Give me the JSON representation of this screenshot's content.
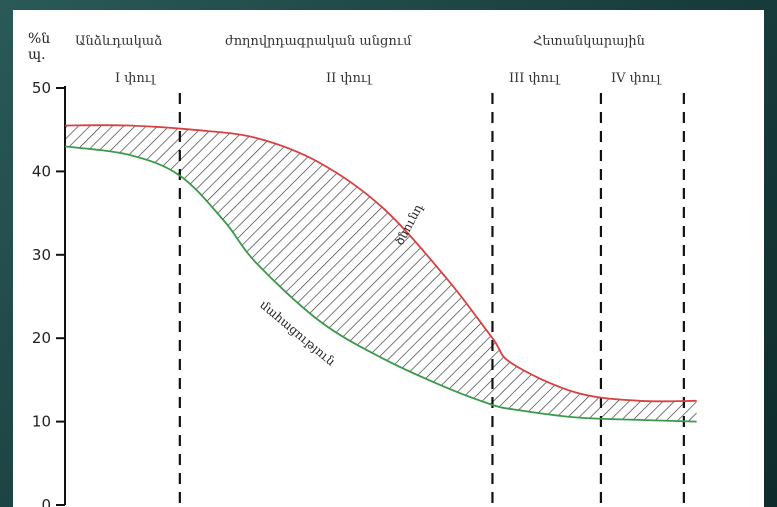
{
  "chart_data": {
    "type": "area",
    "ylim": [
      0,
      50
    ],
    "xlim": [
      0,
      10
    ],
    "y_ticks": [
      0,
      10,
      20,
      30,
      40,
      50
    ],
    "y_unit_lines": [
      "%ն",
      "պ."
    ],
    "grid": false,
    "headers": [
      "Անձևդակաձ",
      "ժողովրդագրական անցում",
      "Հետանկարային"
    ],
    "phases": [
      "I փուլ",
      "II փուլ",
      "III փուլ",
      "IV փուլ"
    ],
    "phase_boundaries": [
      1.8,
      6.7,
      8.4,
      9.7
    ],
    "series": [
      {
        "name": "ծնունդ",
        "color": "#d94040",
        "x": [
          0,
          1,
          2,
          3,
          4,
          5,
          6,
          6.7,
          7,
          8,
          9,
          9.9
        ],
        "y": [
          45.5,
          45.5,
          45,
          44,
          41,
          35.5,
          27,
          20,
          17,
          13.5,
          12.5,
          12.5
        ]
      },
      {
        "name": "մահացություն",
        "color": "#3a9a4a",
        "x": [
          0,
          1,
          1.8,
          2.5,
          3,
          4,
          5,
          6,
          6.7,
          7,
          8,
          9,
          9.9
        ],
        "y": [
          43,
          42,
          39.5,
          34,
          29,
          22,
          17.5,
          14,
          12,
          11.5,
          10.5,
          10.2,
          10
        ]
      }
    ]
  }
}
